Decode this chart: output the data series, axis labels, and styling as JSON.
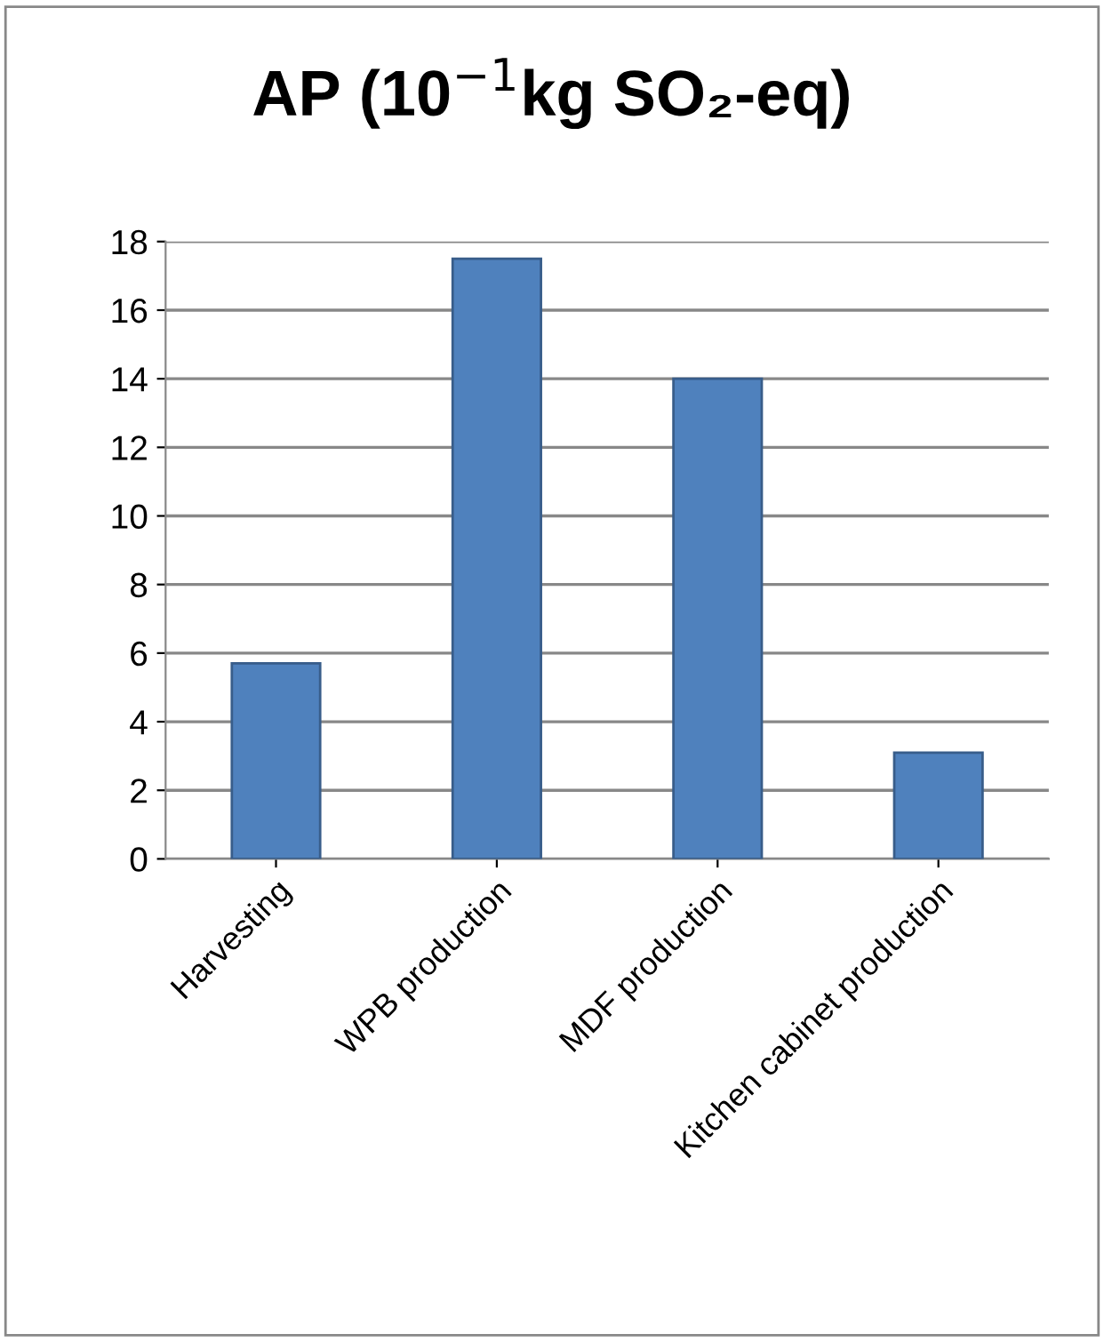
{
  "chart_data": {
    "type": "bar",
    "title": "AP (10$^{−1}$kg SO₂-eq)",
    "categories": [
      "Harvesting",
      "WPB production",
      "MDF production",
      "Kitchen cabinet production"
    ],
    "values": [
      5.7,
      17.5,
      14.0,
      3.1
    ],
    "color": "#4f81bd",
    "ylim": [
      0,
      18
    ],
    "yticks": [
      0,
      2,
      4,
      6,
      8,
      10,
      12,
      14,
      16,
      18
    ],
    "grid": "y",
    "legend": false
  }
}
